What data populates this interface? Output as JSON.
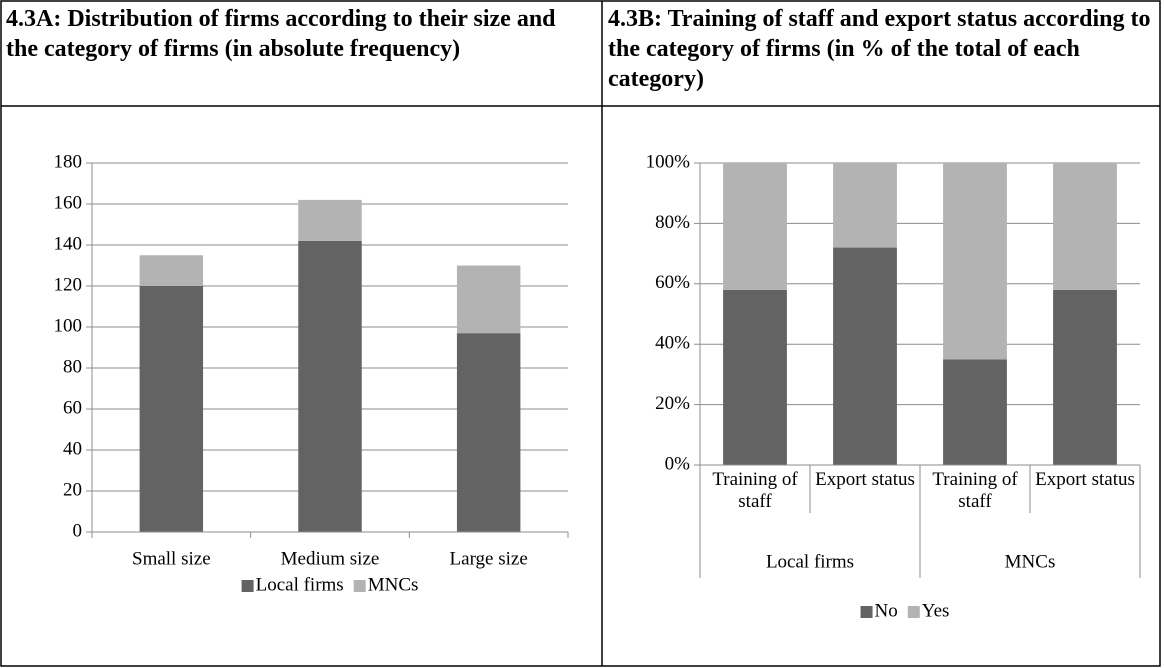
{
  "chart_data": [
    {
      "type": "bar",
      "stacked": true,
      "title": "4.3A: Distribution of firms according to their size and the category of firms (in absolute frequency)",
      "categories": [
        "Small size",
        "Medium size",
        "Large size"
      ],
      "series": [
        {
          "name": "Local firms",
          "color": "#636363",
          "values": [
            120,
            142,
            97
          ]
        },
        {
          "name": "MNCs",
          "color": "#b3b3b3",
          "values": [
            15,
            20,
            33
          ]
        }
      ],
      "ylim": [
        0,
        180
      ],
      "yticks": [
        0,
        20,
        40,
        60,
        80,
        100,
        120,
        140,
        160,
        180
      ],
      "grid": true,
      "legend": "bottom"
    },
    {
      "type": "bar",
      "stacked": true,
      "title": "4.3B: Training of staff and export status according to the category of firms (in % of the total of each category)",
      "categories": [
        "Training of staff",
        "Export status",
        "Training of staff",
        "Export status"
      ],
      "groups": [
        "Local firms",
        "MNCs"
      ],
      "series": [
        {
          "name": "No",
          "color": "#636363",
          "values": [
            58,
            72,
            35,
            58
          ]
        },
        {
          "name": "Yes",
          "color": "#b3b3b3",
          "values": [
            42,
            28,
            65,
            42
          ]
        }
      ],
      "ylim": [
        0,
        100
      ],
      "yticks": [
        {
          "value": 0,
          "label": "0%"
        },
        {
          "value": 20,
          "label": "20%"
        },
        {
          "value": 40,
          "label": "40%"
        },
        {
          "value": 60,
          "label": "60%"
        },
        {
          "value": 80,
          "label": "80%"
        },
        {
          "value": 100,
          "label": "100%"
        }
      ],
      "grid": true,
      "legend": "bottom"
    }
  ]
}
